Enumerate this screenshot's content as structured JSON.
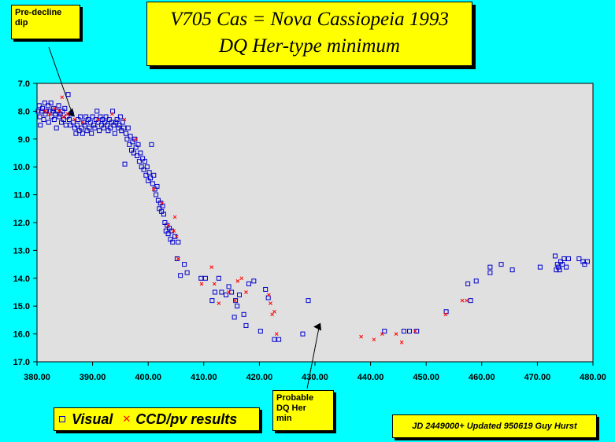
{
  "title": {
    "line1": "V705 Cas = Nova Cassiopeia 1993",
    "line2": "DQ Her-type minimum"
  },
  "annotations": {
    "pre_decline": [
      "Pre-decline",
      "dip"
    ],
    "probable_min": [
      "Probable",
      "DQ Her",
      "min"
    ]
  },
  "legend": {
    "visual": "Visual",
    "ccd": "CCD/pv results"
  },
  "credit": "JD 2449000+ Updated 950619 Guy Hurst",
  "colors": {
    "background": "#00FFFF",
    "plot_area": "#E0E0E0",
    "visual_marker": "#0000CC",
    "ccd_marker": "#FF0000",
    "box_fill": "#FFFF00"
  },
  "chart_data": {
    "type": "scatter",
    "xlim": [
      380,
      480
    ],
    "ylim": [
      7,
      17
    ],
    "y_reversed": true,
    "grid": false,
    "xticks": [
      "380.00",
      "390.00",
      "400.00",
      "410.00",
      "420.00",
      "430.00",
      "440.00",
      "450.00",
      "460.00",
      "470.00",
      "480.00"
    ],
    "yticks": [
      "7.0",
      "8.0",
      "9.0",
      "10.0",
      "11.0",
      "12.0",
      "13.0",
      "14.0",
      "15.0",
      "16.0",
      "17.0"
    ],
    "annotation_targets": {
      "pre_decline": [
        386.8,
        8.2
      ],
      "probable_min": [
        431,
        15.6
      ]
    },
    "series": [
      {
        "name": "Visual",
        "marker": "square",
        "points": [
          [
            380.2,
            8.0
          ],
          [
            380.4,
            7.8
          ],
          [
            380.5,
            8.2
          ],
          [
            380.6,
            8.5
          ],
          [
            380.8,
            8.0
          ],
          [
            381.0,
            7.9
          ],
          [
            381.2,
            8.3
          ],
          [
            381.4,
            7.7
          ],
          [
            381.5,
            8.1
          ],
          [
            381.7,
            8.0
          ],
          [
            382.0,
            7.8
          ],
          [
            382.1,
            8.4
          ],
          [
            382.3,
            8.0
          ],
          [
            382.5,
            7.7
          ],
          [
            382.6,
            8.2
          ],
          [
            382.8,
            8.0
          ],
          [
            383.0,
            7.9
          ],
          [
            383.1,
            8.3
          ],
          [
            383.3,
            8.1
          ],
          [
            383.5,
            8.6
          ],
          [
            383.7,
            8.0
          ],
          [
            383.9,
            7.8
          ],
          [
            384.0,
            8.2
          ],
          [
            384.2,
            8.1
          ],
          [
            384.4,
            8.4
          ],
          [
            384.6,
            8.0
          ],
          [
            384.8,
            8.3
          ],
          [
            385.0,
            7.9
          ],
          [
            385.2,
            8.5
          ],
          [
            385.4,
            8.2
          ],
          [
            385.6,
            7.4
          ],
          [
            385.8,
            8.3
          ],
          [
            386.0,
            8.5
          ],
          [
            386.2,
            8.1
          ],
          [
            386.5,
            8.4
          ],
          [
            386.8,
            8.6
          ],
          [
            387.0,
            8.8
          ],
          [
            387.2,
            8.5
          ],
          [
            387.4,
            8.3
          ],
          [
            387.6,
            8.7
          ],
          [
            387.8,
            8.2
          ],
          [
            388.0,
            8.6
          ],
          [
            388.2,
            8.8
          ],
          [
            388.4,
            8.4
          ],
          [
            388.6,
            8.5
          ],
          [
            388.8,
            8.2
          ],
          [
            389.0,
            8.7
          ],
          [
            389.2,
            8.3
          ],
          [
            389.4,
            8.6
          ],
          [
            389.6,
            8.4
          ],
          [
            389.8,
            8.8
          ],
          [
            390.0,
            8.2
          ],
          [
            390.2,
            8.5
          ],
          [
            390.4,
            8.6
          ],
          [
            390.6,
            8.3
          ],
          [
            390.8,
            8.0
          ],
          [
            391.0,
            8.4
          ],
          [
            391.2,
            8.7
          ],
          [
            391.4,
            8.2
          ],
          [
            391.6,
            8.5
          ],
          [
            391.8,
            8.3
          ],
          [
            392.0,
            8.6
          ],
          [
            392.2,
            8.4
          ],
          [
            392.4,
            8.2
          ],
          [
            392.6,
            8.5
          ],
          [
            392.8,
            8.7
          ],
          [
            393.0,
            8.3
          ],
          [
            393.2,
            8.6
          ],
          [
            393.4,
            8.4
          ],
          [
            393.6,
            8.0
          ],
          [
            393.8,
            8.5
          ],
          [
            394.0,
            8.8
          ],
          [
            394.2,
            8.4
          ],
          [
            394.4,
            8.3
          ],
          [
            394.6,
            8.6
          ],
          [
            394.8,
            8.5
          ],
          [
            395.0,
            8.2
          ],
          [
            395.2,
            8.7
          ],
          [
            395.4,
            8.4
          ],
          [
            395.6,
            8.6
          ],
          [
            395.8,
            9.9
          ],
          [
            396.0,
            8.8
          ],
          [
            396.2,
            9.0
          ],
          [
            396.4,
            8.6
          ],
          [
            396.6,
            9.2
          ],
          [
            396.8,
            8.9
          ],
          [
            397.0,
            9.4
          ],
          [
            397.2,
            9.1
          ],
          [
            397.4,
            9.5
          ],
          [
            397.6,
            9.0
          ],
          [
            397.8,
            9.3
          ],
          [
            398.0,
            9.6
          ],
          [
            398.2,
            9.2
          ],
          [
            398.4,
            9.8
          ],
          [
            398.6,
            9.5
          ],
          [
            398.8,
            10.0
          ],
          [
            399.0,
            9.7
          ],
          [
            399.2,
            10.1
          ],
          [
            399.4,
            9.8
          ],
          [
            399.6,
            10.3
          ],
          [
            399.8,
            10.0
          ],
          [
            400.0,
            10.5
          ],
          [
            400.2,
            10.2
          ],
          [
            400.4,
            10.4
          ],
          [
            400.6,
            9.2
          ],
          [
            400.8,
            10.6
          ],
          [
            401.0,
            10.3
          ],
          [
            401.2,
            10.8
          ],
          [
            401.4,
            11.0
          ],
          [
            401.6,
            10.7
          ],
          [
            401.8,
            11.2
          ],
          [
            402.0,
            11.5
          ],
          [
            402.2,
            11.3
          ],
          [
            402.4,
            11.6
          ],
          [
            402.6,
            11.4
          ],
          [
            402.8,
            11.7
          ],
          [
            403.0,
            12.0
          ],
          [
            403.2,
            12.3
          ],
          [
            403.4,
            12.1
          ],
          [
            403.6,
            12.4
          ],
          [
            403.8,
            12.2
          ],
          [
            404.0,
            12.6
          ],
          [
            404.2,
            12.3
          ],
          [
            404.4,
            12.7
          ],
          [
            404.8,
            12.5
          ],
          [
            405.2,
            13.3
          ],
          [
            405.4,
            12.7
          ],
          [
            405.8,
            13.9
          ],
          [
            406.5,
            13.5
          ],
          [
            407.0,
            13.8
          ],
          [
            409.5,
            14.0
          ],
          [
            410.3,
            14.0
          ],
          [
            411.5,
            14.8
          ],
          [
            412.0,
            14.5
          ],
          [
            412.7,
            14.0
          ],
          [
            413.2,
            14.5
          ],
          [
            414.0,
            14.6
          ],
          [
            414.5,
            14.3
          ],
          [
            415.0,
            14.5
          ],
          [
            415.5,
            15.4
          ],
          [
            415.7,
            14.8
          ],
          [
            416.0,
            15.0
          ],
          [
            416.4,
            14.6
          ],
          [
            417.2,
            15.3
          ],
          [
            417.6,
            15.7
          ],
          [
            418.1,
            14.2
          ],
          [
            419.0,
            14.1
          ],
          [
            420.2,
            15.9
          ],
          [
            421.1,
            14.4
          ],
          [
            421.6,
            14.7
          ],
          [
            422.7,
            16.2
          ],
          [
            423.5,
            16.2
          ],
          [
            427.8,
            16.0
          ],
          [
            428.8,
            14.8
          ],
          [
            442.5,
            15.9
          ],
          [
            446.0,
            15.9
          ],
          [
            447.0,
            15.9
          ],
          [
            448.3,
            15.9
          ],
          [
            453.6,
            15.2
          ],
          [
            457.5,
            14.2
          ],
          [
            458.0,
            14.8
          ],
          [
            459.0,
            14.1
          ],
          [
            461.5,
            13.8
          ],
          [
            461.5,
            13.6
          ],
          [
            463.5,
            13.5
          ],
          [
            465.5,
            13.7
          ],
          [
            470.5,
            13.6
          ],
          [
            473.2,
            13.2
          ],
          [
            473.4,
            13.7
          ],
          [
            473.6,
            13.5
          ],
          [
            473.8,
            13.6
          ],
          [
            474.0,
            13.7
          ],
          [
            474.2,
            13.4
          ],
          [
            474.5,
            13.5
          ],
          [
            474.8,
            13.3
          ],
          [
            475.2,
            13.6
          ],
          [
            475.6,
            13.3
          ],
          [
            477.5,
            13.3
          ],
          [
            478.2,
            13.4
          ],
          [
            478.5,
            13.5
          ],
          [
            479.0,
            13.4
          ]
        ]
      },
      {
        "name": "CCD/pv results",
        "marker": "x",
        "points": [
          [
            381.5,
            8.0
          ],
          [
            382.3,
            8.1
          ],
          [
            383.2,
            7.9
          ],
          [
            384.0,
            8.0
          ],
          [
            384.5,
            7.5
          ],
          [
            384.8,
            8.2
          ],
          [
            385.5,
            8.1
          ],
          [
            386.8,
            8.3
          ],
          [
            388.2,
            8.4
          ],
          [
            391.0,
            8.3
          ],
          [
            393.5,
            8.1
          ],
          [
            395.7,
            8.3
          ],
          [
            397.8,
            9.0
          ],
          [
            401.0,
            10.8
          ],
          [
            402.5,
            11.3
          ],
          [
            403.6,
            12.1
          ],
          [
            404.6,
            12.3
          ],
          [
            405.1,
            12.5
          ],
          [
            404.8,
            11.8
          ],
          [
            405.4,
            13.3
          ],
          [
            409.6,
            14.2
          ],
          [
            411.4,
            13.6
          ],
          [
            411.9,
            14.2
          ],
          [
            412.7,
            14.9
          ],
          [
            414.5,
            14.5
          ],
          [
            415.6,
            14.8
          ],
          [
            416.1,
            14.1
          ],
          [
            416.8,
            14.0
          ],
          [
            417.6,
            14.5
          ],
          [
            421.7,
            14.6
          ],
          [
            422.0,
            14.9
          ],
          [
            422.3,
            15.3
          ],
          [
            422.7,
            15.2
          ],
          [
            423.1,
            16.0
          ],
          [
            438.3,
            16.1
          ],
          [
            440.6,
            16.2
          ],
          [
            442.1,
            16.0
          ],
          [
            444.6,
            16.0
          ],
          [
            445.6,
            16.3
          ],
          [
            448.0,
            15.9
          ],
          [
            453.5,
            15.3
          ],
          [
            456.5,
            14.8
          ],
          [
            457.3,
            14.8
          ]
        ]
      }
    ]
  }
}
